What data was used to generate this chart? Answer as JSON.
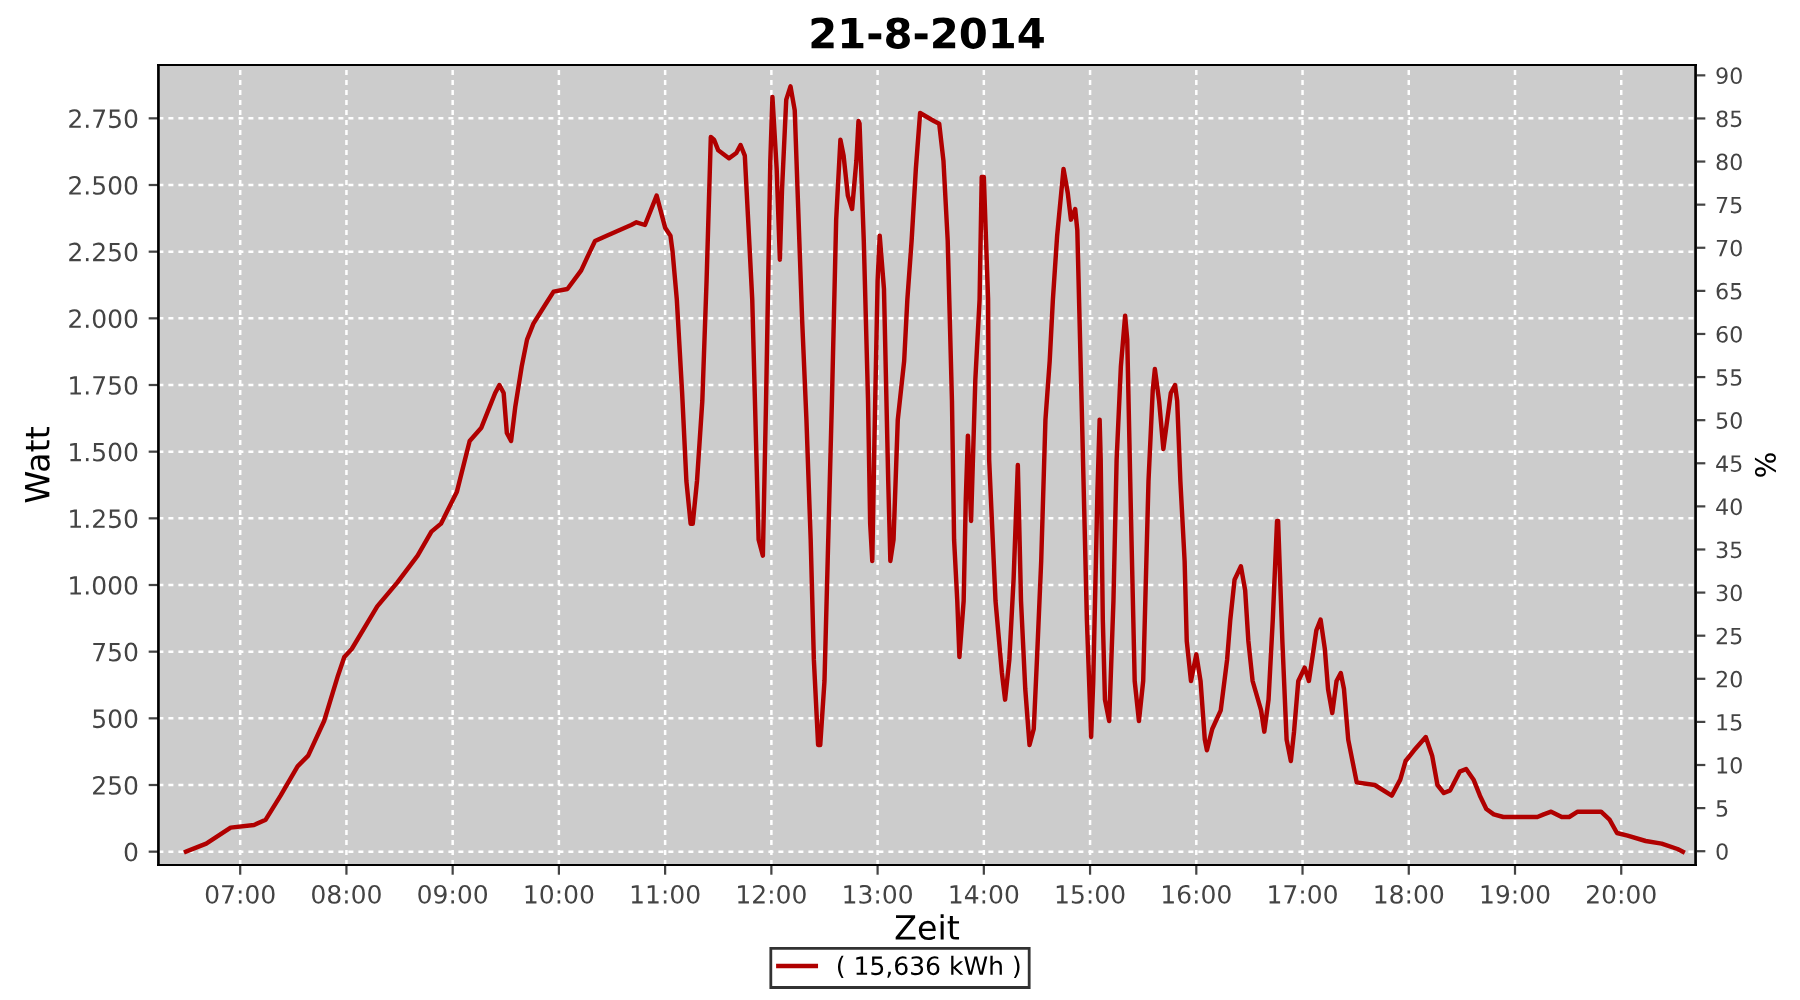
{
  "chart_data": {
    "type": "line",
    "title": "21-8-2014",
    "xlabel": "Zeit",
    "ylabel": "Watt",
    "y2label": "%",
    "x": [
      6.49,
      6.68,
      6.91,
      7.13,
      7.24,
      7.38,
      7.54,
      7.64,
      7.79,
      7.92,
      7.98,
      8.05,
      8.29,
      8.48,
      8.67,
      8.8,
      8.89,
      9.04,
      9.16,
      9.27,
      9.4,
      9.44,
      9.48,
      9.51,
      9.55,
      9.59,
      9.65,
      9.7,
      9.76,
      9.87,
      9.95,
      10.08,
      10.21,
      10.28,
      10.34,
      10.45,
      10.68,
      10.73,
      10.81,
      10.92,
      11.0,
      11.05,
      11.07,
      11.11,
      11.16,
      11.2,
      11.24,
      11.26,
      11.3,
      11.35,
      11.39,
      11.43,
      11.46,
      11.5,
      11.6,
      11.67,
      11.71,
      11.75,
      11.78,
      11.82,
      11.86,
      11.88,
      11.92,
      11.95,
      11.99,
      12.01,
      12.05,
      12.08,
      12.1,
      12.14,
      12.18,
      12.22,
      12.25,
      12.29,
      12.33,
      12.37,
      12.4,
      12.44,
      12.46,
      12.5,
      12.53,
      12.57,
      12.61,
      12.65,
      12.68,
      12.72,
      12.76,
      12.8,
      12.82,
      12.83,
      12.87,
      12.91,
      12.93,
      12.95,
      12.97,
      13.0,
      13.02,
      13.06,
      13.1,
      13.12,
      13.15,
      13.19,
      13.25,
      13.28,
      13.32,
      13.36,
      13.4,
      13.53,
      13.58,
      13.62,
      13.66,
      13.7,
      13.72,
      13.75,
      13.77,
      13.81,
      13.83,
      13.85,
      13.88,
      13.92,
      13.96,
      13.98,
      14.0,
      14.04,
      14.05,
      14.11,
      14.17,
      14.2,
      14.24,
      14.28,
      14.32,
      14.35,
      14.39,
      14.43,
      14.47,
      14.5,
      14.54,
      14.58,
      14.62,
      14.65,
      14.69,
      14.75,
      14.79,
      14.82,
      14.86,
      14.88,
      14.92,
      14.97,
      15.01,
      15.03,
      15.07,
      15.09,
      15.1,
      15.12,
      15.14,
      15.18,
      15.22,
      15.25,
      15.29,
      15.33,
      15.35,
      15.39,
      15.42,
      15.46,
      15.5,
      15.52,
      15.55,
      15.59,
      15.61,
      15.65,
      15.69,
      15.72,
      15.76,
      15.8,
      15.82,
      15.85,
      15.89,
      15.91,
      15.95,
      16.0,
      16.04,
      16.08,
      16.1,
      16.15,
      16.23,
      16.29,
      16.32,
      16.36,
      16.42,
      16.46,
      16.49,
      16.53,
      16.61,
      16.64,
      16.68,
      16.72,
      16.76,
      16.77,
      16.81,
      16.85,
      16.89,
      16.92,
      16.96,
      17.02,
      17.06,
      17.09,
      17.13,
      17.17,
      17.21,
      17.24,
      17.28,
      17.32,
      17.36,
      17.39,
      17.43,
      17.51,
      17.68,
      17.84,
      17.92,
      17.97,
      18.05,
      18.16,
      18.22,
      18.27,
      18.33,
      18.39,
      18.48,
      18.54,
      18.61,
      18.67,
      18.73,
      18.8,
      18.89,
      19.21,
      19.27,
      19.34,
      19.44,
      19.51,
      19.59,
      19.81,
      19.89,
      19.96,
      20.06,
      20.23,
      20.38,
      20.53,
      20.58
    ],
    "series": [
      {
        "name": "( 15,636 kWh )",
        "color": "#b00000",
        "values": [
          0,
          30,
          90,
          100,
          120,
          210,
          320,
          360,
          490,
          660,
          730,
          760,
          920,
          1010,
          1110,
          1200,
          1230,
          1350,
          1540,
          1590,
          1720,
          1750,
          1720,
          1570,
          1540,
          1670,
          1820,
          1920,
          1980,
          2050,
          2100,
          2110,
          2180,
          2240,
          2290,
          2310,
          2350,
          2360,
          2350,
          2460,
          2340,
          2310,
          2250,
          2070,
          1720,
          1390,
          1230,
          1230,
          1390,
          1690,
          2140,
          2680,
          2670,
          2630,
          2600,
          2620,
          2650,
          2610,
          2380,
          2070,
          1470,
          1170,
          1110,
          1690,
          2590,
          2830,
          2560,
          2220,
          2480,
          2820,
          2870,
          2780,
          2440,
          1990,
          1620,
          1170,
          720,
          400,
          400,
          640,
          1090,
          1690,
          2370,
          2670,
          2610,
          2460,
          2410,
          2590,
          2740,
          2730,
          2290,
          1690,
          1230,
          1090,
          1540,
          2140,
          2310,
          2110,
          1390,
          1090,
          1170,
          1620,
          1840,
          2070,
          2290,
          2560,
          2770,
          2740,
          2730,
          2590,
          2290,
          1690,
          1170,
          940,
          730,
          940,
          1320,
          1560,
          1240,
          1770,
          2070,
          2530,
          2530,
          2070,
          1470,
          940,
          670,
          570,
          720,
          1020,
          1450,
          940,
          610,
          400,
          460,
          720,
          1090,
          1620,
          1840,
          2070,
          2310,
          2560,
          2470,
          2370,
          2410,
          2330,
          1690,
          870,
          430,
          640,
          1360,
          1620,
          1470,
          870,
          570,
          490,
          940,
          1470,
          1820,
          2010,
          1920,
          1170,
          640,
          490,
          640,
          940,
          1390,
          1730,
          1810,
          1690,
          1510,
          1600,
          1720,
          1750,
          1690,
          1390,
          1090,
          790,
          640,
          740,
          640,
          420,
          380,
          460,
          530,
          720,
          870,
          1020,
          1070,
          980,
          790,
          640,
          530,
          450,
          570,
          870,
          1240,
          1240,
          790,
          420,
          340,
          450,
          640,
          690,
          640,
          720,
          830,
          870,
          760,
          610,
          520,
          640,
          670,
          610,
          420,
          260,
          250,
          210,
          270,
          340,
          380,
          430,
          360,
          250,
          220,
          230,
          300,
          310,
          270,
          210,
          160,
          140,
          130,
          130,
          140,
          150,
          130,
          130,
          150,
          150,
          120,
          70,
          60,
          40,
          30,
          10,
          0
        ]
      }
    ],
    "xlim": [
      6.23,
      20.7
    ],
    "xticks": [
      {
        "value": 7,
        "label": "07:00"
      },
      {
        "value": 8,
        "label": "08:00"
      },
      {
        "value": 9,
        "label": "09:00"
      },
      {
        "value": 10,
        "label": "10:00"
      },
      {
        "value": 11,
        "label": "11:00"
      },
      {
        "value": 12,
        "label": "12:00"
      },
      {
        "value": 13,
        "label": "13:00"
      },
      {
        "value": 14,
        "label": "14:00"
      },
      {
        "value": 15,
        "label": "15:00"
      },
      {
        "value": 16,
        "label": "16:00"
      },
      {
        "value": 17,
        "label": "17:00"
      },
      {
        "value": 18,
        "label": "18:00"
      },
      {
        "value": 19,
        "label": "19:00"
      },
      {
        "value": 20,
        "label": "20:00"
      }
    ],
    "ylim": [
      -50,
      2950
    ],
    "yticks": [
      0,
      250,
      500,
      750,
      {
        "value": 1000,
        "label": "1.000"
      },
      {
        "value": 1250,
        "label": "1.250"
      },
      {
        "value": 1500,
        "label": "1.500"
      },
      {
        "value": 1750,
        "label": "1.750"
      },
      {
        "value": 2000,
        "label": "2.000"
      },
      {
        "value": 2250,
        "label": "2.250"
      },
      {
        "value": 2500,
        "label": "2.500"
      },
      {
        "value": 2750,
        "label": "2.750"
      }
    ],
    "y2lim": [
      -1.6,
      91.2
    ],
    "y2ticks": [
      0,
      5,
      10,
      15,
      20,
      25,
      30,
      35,
      40,
      45,
      50,
      55,
      60,
      65,
      70,
      75,
      80,
      85,
      90
    ],
    "grid": true,
    "legend": "bottom",
    "marker": "none",
    "line_style": "solid"
  }
}
